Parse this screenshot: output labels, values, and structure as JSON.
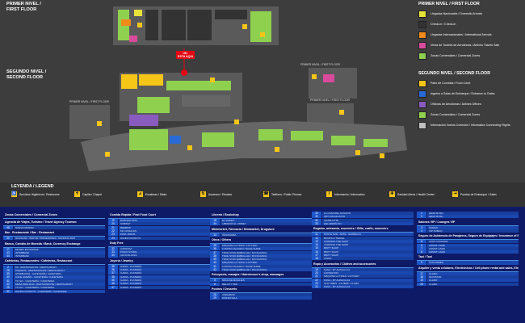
{
  "floors": {
    "first": {
      "line1": "PRIMER NIVEL /",
      "line2": "FIRST FLOOR"
    },
    "second": {
      "line1": "SEGUNDO NIVEL /",
      "line2": "SECOND FLOOR"
    }
  },
  "map_labels": {
    "small": [
      "PRIMER NIVEL / FIRST FLOOR",
      "PRIMER NIVEL / FIRST FLOOR",
      "PRIMER NIVEL / FIRST FLOOR"
    ],
    "you_are_here": {
      "line1": "UD.",
      "line2": "ESTA AQUI"
    }
  },
  "legend_first": {
    "title": "PRIMER NIVEL / FIRST FLOOR",
    "items": [
      {
        "label": "Llegadas Nacionales / Domestic Arrivals",
        "color": "#e7e23a"
      },
      {
        "label": "Check-in / Check-in",
        "color": "#333333"
      },
      {
        "label": "Llegadas Internacionales / International Arrivals",
        "color": "#f08a1a"
      },
      {
        "label": "Venta de Ticket/s de Aerolíneas / Airlines Tickets Sale",
        "color": "#d84a9c"
      },
      {
        "label": "Zonas Comerciales / Comercial Zones",
        "color": "#8fd14f"
      }
    ]
  },
  "legend_second": {
    "title": "SEGUNDO NIVEL / SECOND FLOOR",
    "items": [
      {
        "label": "Patio de Comidas / Food Court",
        "color": "#f5c518"
      },
      {
        "label": "Ingreso a Salas de Embarque / Entrance to Gates",
        "color": "#2a6ad6"
      },
      {
        "label": "Oficinas de Aerolíneas / Airlines Offices",
        "color": "#8a5bbf"
      },
      {
        "label": "Zonas Comerciales / Comercial Zones",
        "color": "#8fd14f"
      },
      {
        "label": "Información Vuelos Conexión / Information Connecting Flights",
        "color": "#bfbfbf"
      }
    ]
  },
  "legend_strip": {
    "title": "LEYENDA / LEGEND",
    "symbols": [
      {
        "label": "Servicios Higiénicos / Restrooms",
        "glyph": "♿"
      },
      {
        "label": "Capilla / Chapel",
        "glyph": "✝"
      },
      {
        "label": "Escaleras / Stairs",
        "glyph": "⊿"
      },
      {
        "label": "Ascensor / Elevator",
        "glyph": "⇅"
      },
      {
        "label": "Teléfono / Public Phones",
        "glyph": "☎"
      },
      {
        "label": "Información / Information",
        "glyph": "i"
      },
      {
        "label": "Sanidad Aérea / Health Center",
        "glyph": "✚"
      },
      {
        "label": "Puertas de Embarque / Gates",
        "glyph": "⇥"
      }
    ]
  },
  "directory": {
    "col1": {
      "sections": [
        {
          "header": "Zonas Comerciales / Comercial Zones",
          "rows": []
        },
        {
          "header": "Agencia de Viajes, Turismo / Travel Agency Tourism",
          "rows": [
            [
              "48",
              "NUEVO MUNDO"
            ]
          ]
        },
        {
          "header": "Bar - Restaurante / Bar - Restaurant",
          "rows": [
            [
              "21",
              "HUASCAR - BAR DE TORNEDORES / SNORING BAR"
            ]
          ]
        },
        {
          "header": "Banco, Cambio de Moneda / Bank, Currency Exchange",
          "rows": [
            [
              "17",
              "MONEY EXCHANGE"
            ],
            [
              "43",
              "INTERBANK"
            ],
            [
              "44",
              "INTERBANK"
            ]
          ]
        },
        {
          "header": "Cafeterías, Restaurantes / Cafeterías, Restaurant",
          "rows": [
            [
              "2",
              "PA - RESTAURANTE / RESTAURANT"
            ],
            [
              "28",
              "PIQUEOS - RESTAURANTE / RESTAURANT"
            ],
            [
              "39",
              "STARBUCKS - CAFETERÍA / CAFETERIA"
            ],
            [
              "40",
              "CAFE LIMEÑO - CAFETERÍA / CAFETERIA"
            ],
            [
              "41",
              "TO GO - CAFETERÍA / CAFETERIA"
            ],
            [
              "42",
              "MESA PERUANA - RESTAURANTE / RESTAURANT"
            ],
            [
              "25",
              "TO GO - CAFETERÍA / CAFETERIA"
            ],
            [
              "31",
              "DUNKIN DONUTS - CAFETERÍA / CAFETERIA"
            ]
          ]
        }
      ]
    },
    "col2": {
      "sections": [
        {
          "header": "Comida Rápida / Fast Food Court",
          "rows": [
            [
              "19",
              "BURGER KING"
            ],
            [
              "20",
              "SUBWAY"
            ],
            [
              "21",
              "BEMBOS"
            ],
            [
              "22",
              "MC DONALDS"
            ],
            [
              "23",
              "PAPA JOHNS"
            ],
            [
              "24",
              "DUNKIN DONUTS"
            ]
          ]
        },
        {
          "header": "Duty Free",
          "rows": [
            [
              "32",
              "AUDESSA"
            ],
            [
              "33",
              "PISCO STORE"
            ],
            [
              "34",
              "CHOCOLATES"
            ]
          ]
        },
        {
          "header": "Joyería / Jewelry",
          "rows": [
            [
              "35",
              "ILARIA - PLATERÍA"
            ],
            [
              "36",
              "ILARIA - PLATERÍA"
            ],
            [
              "37",
              "ILARIA - PLATERÍA"
            ],
            [
              "38",
              "ILARIA - PLATERÍA"
            ],
            [
              "45",
              "ILARIA - PLATERÍA"
            ],
            [
              "46",
              "ILARIA - PLATERÍA"
            ],
            [
              "47",
              "ILARIA - PLATERÍA"
            ]
          ]
        }
      ]
    },
    "col3": {
      "sections": [
        {
          "header": "Librería / Bookshop",
          "rows": [
            [
              "18",
              "EL VIRREY"
            ],
            [
              "34",
              "LIBRERÍA EL VIRREY"
            ]
          ]
        },
        {
          "header": "Minimarket, Farmacia / Minimarket, Drugstore",
          "rows": [
            [
              "14",
              "INKAFARMA"
            ]
          ]
        },
        {
          "header": "Otros / Others",
          "rows": [
            [
              "35",
              "MÁQUINA LA TINKA / LOTTERY"
            ],
            [
              "36",
              "LUSTRA CALZADO / SHOE SHINE"
            ],
            [
              "37",
              "TRUE STAR (EMBALAJE / PACKAGING)"
            ],
            [
              "38",
              "TRUE STAR (EMBALAJE / PACKAGING)"
            ],
            [
              "39",
              "TRUE STAR (EMBALAJE / PACKAGING)"
            ],
            [
              "40",
              "MÁQUINA LA TINKA / LOTTERY"
            ],
            [
              "41",
              "LUSTRA CALZADO / SHOE SHINE"
            ],
            [
              "42",
              "TRUE STAR (EMBALAJE / PACKAGING)"
            ]
          ]
        },
        {
          "header": "Peluquería, masajes / Hairdresser's shop, massages",
          "rows": [
            [
              "5",
              "SPAN DE MASAJES"
            ],
            [
              "6",
              "RELAX Y SPA"
            ]
          ]
        },
        {
          "header": "Postres / Desserts",
          "rows": [
            [
              "28",
              "CINNABON"
            ],
            [
              "29",
              "DISFRUTELA"
            ]
          ]
        }
      ]
    },
    "col4": {
      "sections": [
        {
          "header": "",
          "rows": [
            [
              "30",
              "LA CASA DEL ALFAJOR"
            ],
            [
              "31",
              "ART COLLECTION"
            ],
            [
              "32",
              "CHARLOTTE"
            ],
            [
              "33",
              "HELADERÍA 4D"
            ]
          ]
        },
        {
          "header": "Regalos, artesanía, souvenirs / Gifts, crafts, souvenirs",
          "rows": [
            [
              "11",
              "PUNTA SUR - ARTE - GRABALLS"
            ],
            [
              "12",
              "BOOKS & TRAVEL"
            ],
            [
              "13",
              "AUDESSA THE SHOP"
            ],
            [
              "14",
              "AUDESSA THE SHOP"
            ],
            [
              "15",
              "BRITT SHOP"
            ],
            [
              "16",
              "BRITT SHOP"
            ],
            [
              "17",
              "BRITT SHOP"
            ],
            [
              "18",
              "ILARIA"
            ]
          ]
        },
        {
          "header": "Ropa y Accesorios / Clothes and accessories",
          "rows": [
            [
              "19",
              "KUNA - BY ALPACA 111"
            ],
            [
              "20",
              "LOVINGTON"
            ],
            [
              "21",
              "MÁQUINA LA TINKA / LOTTERY"
            ],
            [
              "22",
              "KUNA - BY ALPACA 111"
            ],
            [
              "23",
              "OLD TIMES - CLUBES / CLUBS"
            ],
            [
              "24",
              "KUNA - BY ALPACA 111"
            ]
          ]
        }
      ]
    },
    "col5": {
      "sections": [
        {
          "header": "",
          "rows": [
            [
              "1",
              "HEAD RUSH"
            ],
            [
              "2",
              "HEAD RUSH"
            ]
          ]
        },
        {
          "header": "Salones VIP / Lounges VIP",
          "rows": [
            [
              "3",
              "SUMAQ"
            ],
            [
              "4",
              "VIP SUMAQ"
            ]
          ]
        },
        {
          "header": "Seguro de Asistencia de Pasajeros, Seguro de Equipajes / Insurance of Baggage",
          "rows": [
            [
              "5",
              "LOST LUGGAGE"
            ],
            [
              "6",
              "ASSIST CARD"
            ],
            [
              "7",
              "ASSIST CARD"
            ],
            [
              "8",
              "ASSIST CARD"
            ]
          ]
        },
        {
          "header": "Taxi / Taxi",
          "rows": [
            [
              "9",
              "TAXI GREEN"
            ]
          ]
        },
        {
          "header": "Alquiler y venta celulares, Electrónicos / Cell phone rental and sales, Electronics",
          "rows": [
            [
              "17",
              "CLARO"
            ],
            [
              "18",
              "MOVISTAR"
            ],
            [
              "19",
              "CLARO"
            ],
            [
              "20",
              "CLARO"
            ]
          ]
        }
      ]
    }
  }
}
